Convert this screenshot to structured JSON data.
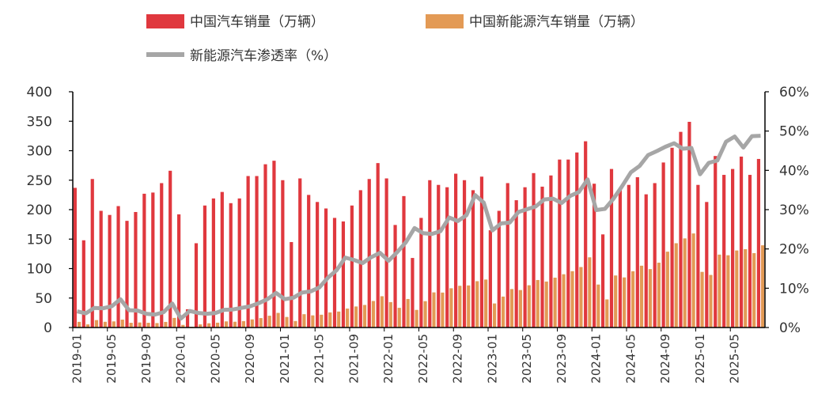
{
  "chart_data": {
    "type": "bar+line",
    "categories_start": "2019-01",
    "x_tick_labels": [
      "2019-01",
      "2019-05",
      "2019-09",
      "2020-01",
      "2020-05",
      "2020-09",
      "2021-01",
      "2021-05",
      "2021-09",
      "2022-01",
      "2022-05",
      "2022-09",
      "2023-01",
      "2023-05",
      "2023-09",
      "2024-01",
      "2024-05",
      "2024-09",
      "2025-01",
      "2025-05"
    ],
    "y_left": {
      "range": [
        0,
        400
      ],
      "ticks": [
        "0",
        "50",
        "100",
        "150",
        "200",
        "250",
        "300",
        "350",
        "400"
      ]
    },
    "y_right": {
      "range": [
        0,
        60
      ],
      "ticks": [
        "0%",
        "10%",
        "20%",
        "30%",
        "40%",
        "50%",
        "60%"
      ]
    },
    "legend_position": "top",
    "series": [
      {
        "name": "中国汽车销量（万辆）",
        "type": "bar",
        "color": "#E0383E",
        "values": [
          237,
          148,
          252,
          198,
          191,
          206,
          181,
          196,
          227,
          229,
          245,
          266,
          192,
          31,
          143,
          207,
          219,
          230,
          211,
          219,
          257,
          257,
          277,
          283,
          250,
          145,
          253,
          225,
          213,
          202,
          186,
          180,
          207,
          233,
          252,
          279,
          253,
          174,
          223,
          118,
          186,
          250,
          242,
          238,
          261,
          250,
          233,
          256,
          165,
          198,
          245,
          216,
          238,
          262,
          239,
          258,
          285,
          285,
          297,
          316,
          244,
          158,
          269,
          236,
          242,
          255,
          226,
          245,
          280,
          305,
          332,
          349,
          242,
          213,
          291,
          259,
          269,
          290,
          259,
          286
        ]
      },
      {
        "name": "中国新能源汽车销量（万辆）",
        "type": "bar",
        "color": "#E39A55",
        "values": [
          9.6,
          5.3,
          12.6,
          9.7,
          10.4,
          13.4,
          8.0,
          8.5,
          8.0,
          7.5,
          9.5,
          16.3,
          4.4,
          1.3,
          5.3,
          7.2,
          8.2,
          10.4,
          9.8,
          10.9,
          13.8,
          16.0,
          20.0,
          24.8,
          17.9,
          11.0,
          22.6,
          20.6,
          21.7,
          25.6,
          27.1,
          32.1,
          35.7,
          38.3,
          45.0,
          53.1,
          43.1,
          33.4,
          48.4,
          29.9,
          44.7,
          59.6,
          59.3,
          66.6,
          70.8,
          71.4,
          78.6,
          81.4,
          40.8,
          52.5,
          65.3,
          63.6,
          71.7,
          80.6,
          78.0,
          84.6,
          90.4,
          95.6,
          102.6,
          119.1,
          72.9,
          47.7,
          88.3,
          85.0,
          95.5,
          104.9,
          99.1,
          110.0,
          128.7,
          143.0,
          151.2,
          159.6,
          94.4,
          89.2,
          123.7,
          122.6,
          130.7,
          132.9,
          126.2,
          139.5
        ]
      },
      {
        "name": "新能源汽车渗透率（%）",
        "type": "line",
        "axis": "right",
        "color": "#A6A6A6",
        "values": [
          4.1,
          3.6,
          5.0,
          4.9,
          5.4,
          7.2,
          4.4,
          4.3,
          3.5,
          3.3,
          3.9,
          6.1,
          2.3,
          4.2,
          3.7,
          3.5,
          3.7,
          4.5,
          4.6,
          5.0,
          5.4,
          6.2,
          7.2,
          8.8,
          7.2,
          7.6,
          8.9,
          9.2,
          10.2,
          12.7,
          14.6,
          17.8,
          17.2,
          16.4,
          17.9,
          19.0,
          17.0,
          19.2,
          21.7,
          25.3,
          24.0,
          23.8,
          24.5,
          28.0,
          27.1,
          28.6,
          33.7,
          31.8,
          24.7,
          26.5,
          26.7,
          29.4,
          30.1,
          30.8,
          32.6,
          32.8,
          31.7,
          33.5,
          34.5,
          37.7,
          29.9,
          30.2,
          32.8,
          36.0,
          39.5,
          41.1,
          43.9,
          44.9,
          46.0,
          46.9,
          45.5,
          45.7,
          39.0,
          41.9,
          42.5,
          47.3,
          48.6,
          45.8,
          48.7,
          48.8
        ]
      }
    ]
  }
}
